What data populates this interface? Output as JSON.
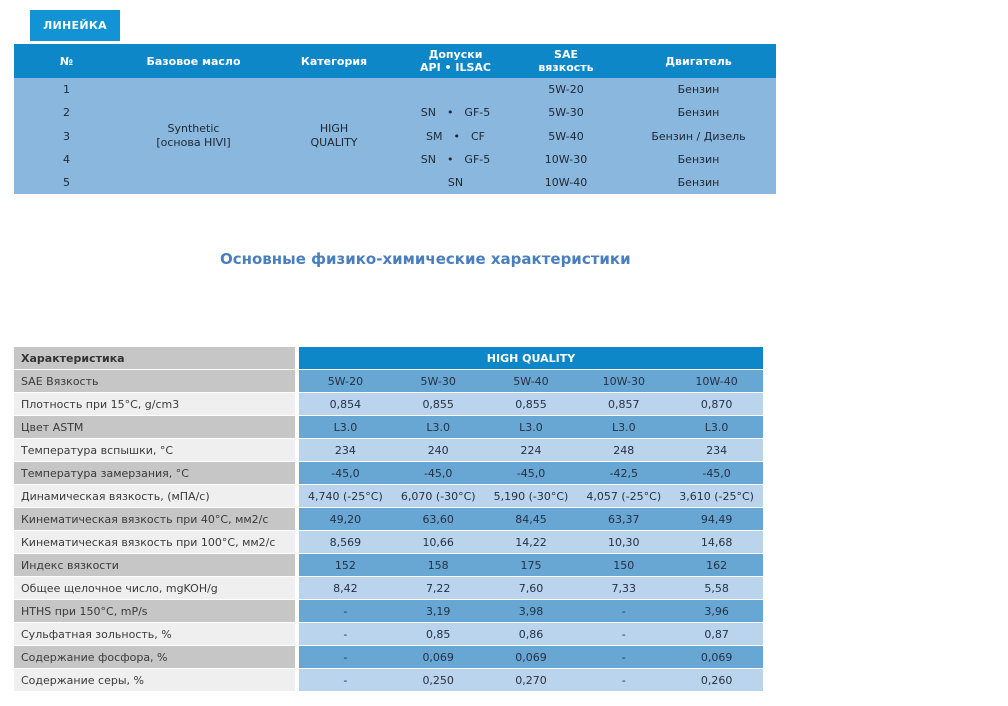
{
  "tab": {
    "label": "ЛИНЕЙКА"
  },
  "colors": {
    "tab": "#1293d3",
    "head": "#0d87c7",
    "body": "#8ab7dd",
    "row-med": "#68a6d4",
    "row-light": "#b9d4ec",
    "label-gray": "#c6c6c6",
    "label-light": "#efefef",
    "title": "#4a7fbf",
    "text": "#1e2733"
  },
  "lineup_table": {
    "headers": {
      "num": "№",
      "base_oil": "Базовое масло",
      "category": "Категория",
      "approvals_line1": "Допуски",
      "approvals_line2": "API • ILSAC",
      "sae_line1": "SAE",
      "sae_line2": "вязкость",
      "engine": "Двигатель"
    },
    "base_oil": {
      "line1": "Synthetic",
      "line2": "[основа HIVI]"
    },
    "category": {
      "line1": "HIGH",
      "line2": "QUALITY"
    },
    "rows": [
      {
        "num": "1",
        "approvals": "",
        "sae": "5W-20",
        "engine": "Бензин"
      },
      {
        "num": "2",
        "approvals": "SN • GF-5",
        "sae": "5W-30",
        "engine": "Бензин"
      },
      {
        "num": "3",
        "approvals": "SM • CF",
        "sae": "5W-40",
        "engine": "Бензин / Дизель"
      },
      {
        "num": "4",
        "approvals": "SN • GF-5",
        "sae": "10W-30",
        "engine": "Бензин"
      },
      {
        "num": "5",
        "approvals": "SN",
        "sae": "10W-40",
        "engine": "Бензин"
      }
    ]
  },
  "section_title": "Основные физико-химические характеристики",
  "properties_table": {
    "label_header": "Характеристика",
    "group_header": "HIGH QUALITY",
    "rows": [
      {
        "label": "SAE Вязкость",
        "values": [
          "5W-20",
          "5W-30",
          "5W-40",
          "10W-30",
          "10W-40"
        ]
      },
      {
        "label": "Плотность при 15°C, g/cm3",
        "values": [
          "0,854",
          "0,855",
          "0,855",
          "0,857",
          "0,870"
        ]
      },
      {
        "label": "Цвет ASTM",
        "values": [
          "L3.0",
          "L3.0",
          "L3.0",
          "L3.0",
          "L3.0"
        ]
      },
      {
        "label": "Температура вспышки, °C",
        "values": [
          "234",
          "240",
          "224",
          "248",
          "234"
        ]
      },
      {
        "label": "Температура замерзания,  °C",
        "values": [
          "-45,0",
          "-45,0",
          "-45,0",
          "-42,5",
          "-45,0"
        ]
      },
      {
        "label": "Динамическая вязкость, (мПА/с)",
        "values": [
          "4,740 (-25°C)",
          "6,070 (-30°C)",
          "5,190 (-30°C)",
          "4,057 (-25°C)",
          "3,610 (-25°C)"
        ]
      },
      {
        "label": "Кинематическая вязкость при 40°C, мм2/с",
        "values": [
          "49,20",
          "63,60",
          "84,45",
          "63,37",
          "94,49"
        ]
      },
      {
        "label": "Кинематическая вязкость при 100°C, мм2/с",
        "values": [
          "8,569",
          "10,66",
          "14,22",
          "10,30",
          "14,68"
        ]
      },
      {
        "label": "Индекс вязкости",
        "values": [
          "152",
          "158",
          "175",
          "150",
          "162"
        ]
      },
      {
        "label": "Общее щелочное число, mgKOH/g",
        "values": [
          "8,42",
          "7,22",
          "7,60",
          "7,33",
          "5,58"
        ]
      },
      {
        "label": "HTHS при 150°C, mP/s",
        "values": [
          "-",
          "3,19",
          "3,98",
          "-",
          "3,96"
        ]
      },
      {
        "label": "Сульфатная зольность, %",
        "values": [
          "-",
          "0,85",
          "0,86",
          "-",
          "0,87"
        ]
      },
      {
        "label": "Содержание фосфора, %",
        "values": [
          "-",
          "0,069",
          "0,069",
          "-",
          "0,069"
        ]
      },
      {
        "label": "Содержание серы, %",
        "values": [
          "-",
          "0,250",
          "0,270",
          "-",
          "0,260"
        ]
      }
    ]
  }
}
